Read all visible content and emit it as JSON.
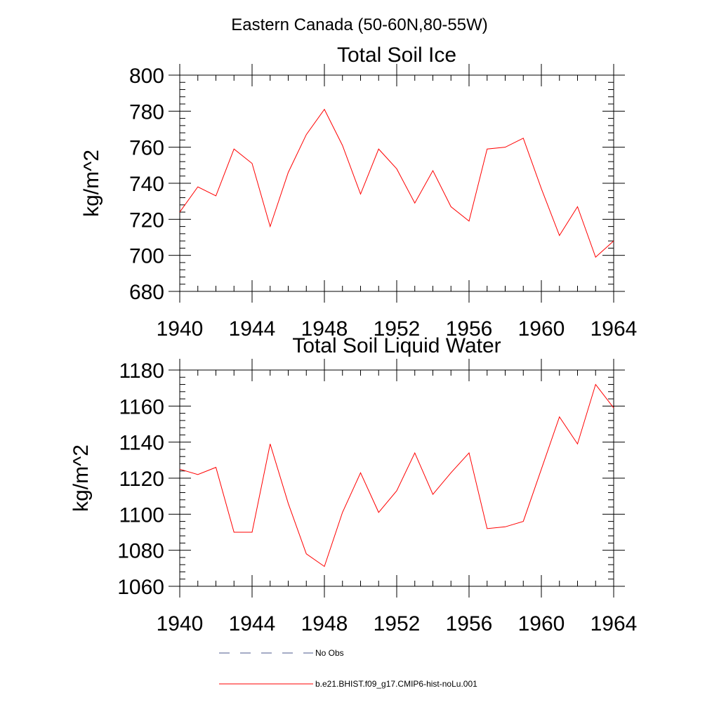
{
  "figure": {
    "title": "Eastern Canada (50-60N,80-55W)"
  },
  "chart_data": [
    {
      "type": "line",
      "title": "Total Soil Ice",
      "xlabel": "",
      "ylabel": "kg/m^2",
      "xlim": [
        1940,
        1964
      ],
      "ylim": [
        680,
        800
      ],
      "xticks": [
        1940,
        1944,
        1948,
        1952,
        1956,
        1960,
        1964
      ],
      "yticks": [
        680,
        700,
        720,
        740,
        760,
        780,
        800
      ],
      "x": [
        1940,
        1941,
        1942,
        1943,
        1944,
        1945,
        1946,
        1947,
        1948,
        1949,
        1950,
        1951,
        1952,
        1953,
        1954,
        1955,
        1956,
        1957,
        1958,
        1959,
        1960,
        1961,
        1962,
        1963,
        1964
      ],
      "series": [
        {
          "name": "b.e21.BHIST.f09_g17.CMIP6-hist-noLu.001",
          "color": "#ff0000",
          "values": [
            724,
            738,
            733,
            759,
            751,
            716,
            746,
            767,
            781,
            761,
            734,
            759,
            748,
            729,
            747,
            727,
            719,
            759,
            760,
            765,
            737,
            711,
            727,
            699,
            708
          ]
        }
      ]
    },
    {
      "type": "line",
      "title": "Total Soil Liquid Water",
      "xlabel": "",
      "ylabel": "kg/m^2",
      "xlim": [
        1940,
        1964
      ],
      "ylim": [
        1060,
        1180
      ],
      "xticks": [
        1940,
        1944,
        1948,
        1952,
        1956,
        1960,
        1964
      ],
      "yticks": [
        1060,
        1080,
        1100,
        1120,
        1140,
        1160,
        1180
      ],
      "x": [
        1940,
        1941,
        1942,
        1943,
        1944,
        1945,
        1946,
        1947,
        1948,
        1949,
        1950,
        1951,
        1952,
        1953,
        1954,
        1955,
        1956,
        1957,
        1958,
        1959,
        1960,
        1961,
        1962,
        1963,
        1964
      ],
      "series": [
        {
          "name": "b.e21.BHIST.f09_g17.CMIP6-hist-noLu.001",
          "color": "#ff0000",
          "values": [
            1125,
            1122,
            1126,
            1090,
            1090,
            1139,
            1106,
            1078,
            1071,
            1101,
            1123,
            1101,
            1113,
            1134,
            1111,
            1123,
            1134,
            1092,
            1093,
            1096,
            1125,
            1154,
            1139,
            1172,
            1159
          ]
        }
      ]
    }
  ],
  "legend": {
    "placement": "bottom",
    "entries": [
      {
        "label": "No Obs",
        "color": "#4b5a8c",
        "style": "dashed"
      },
      {
        "label": "b.e21.BHIST.f09_g17.CMIP6-hist-noLu.001",
        "color": "#ff0000",
        "style": "solid"
      }
    ]
  }
}
